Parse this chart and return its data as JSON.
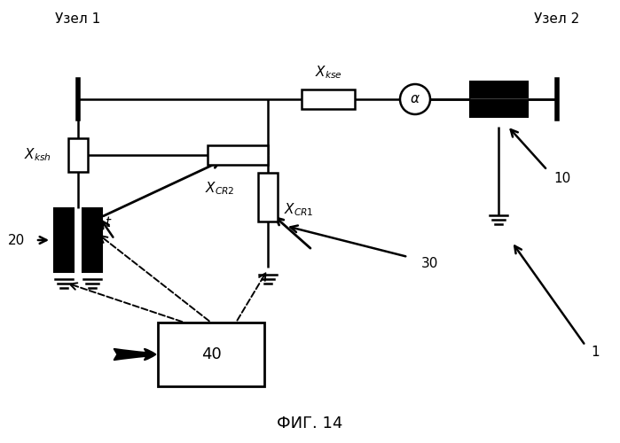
{
  "title": "ФИГ. 14",
  "node1_label": "Узел 1",
  "node2_label": "Узел 2",
  "label_xkse": "$X_{kse}$",
  "label_xksh": "$X_{ksh}$",
  "label_xcr2": "$X_{CR2}$",
  "label_xcr1": "$X_{CR1}$",
  "label_t": "$t$",
  "label_20": "20",
  "label_30": "30",
  "label_10": "10",
  "label_40": "40",
  "label_1": "1",
  "bg_color": "#ffffff",
  "line_color": "#000000",
  "figsize": [
    6.99,
    5.0
  ],
  "dpi": 100
}
